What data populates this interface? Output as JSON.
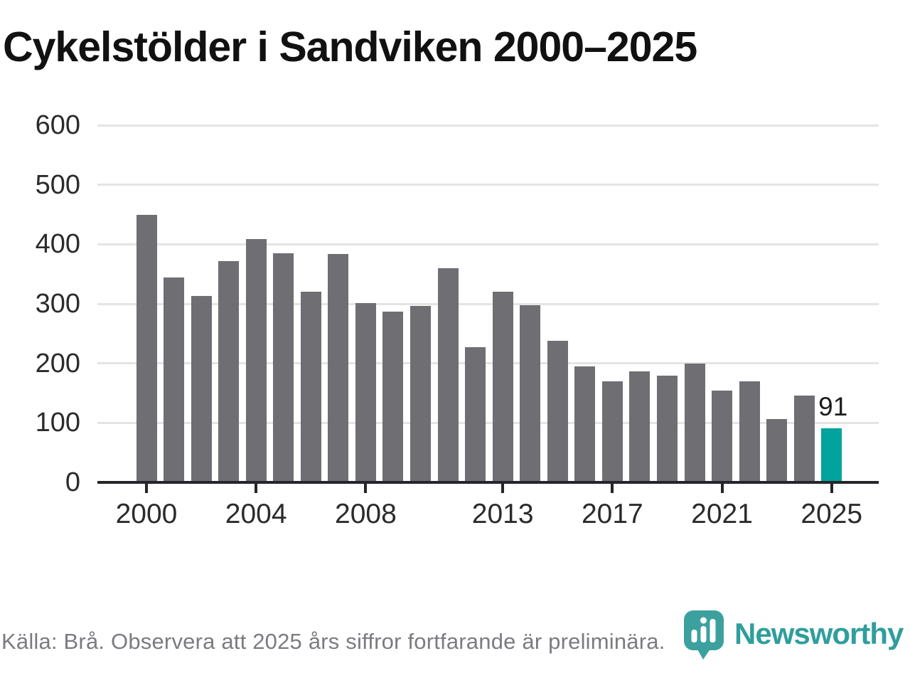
{
  "title": "Cykelstölder i Sandviken 2000–2025",
  "footer": {
    "source_text": "Källa: Brå. Observera att 2025 års siffror fortfarande är preliminära.",
    "brand": "Newsworthy"
  },
  "colors": {
    "title": "#111111",
    "axis": "#26262a",
    "tick_label": "#2b2b2b",
    "gridline": "#e4e4e4",
    "bar": "#6e6e73",
    "highlight": "#00a39d",
    "value_label": "#1d1d1f",
    "source_text": "#7b7b80",
    "logo_badge": "#3ca19e",
    "wordmark": "#2f9e9c"
  },
  "chart_data": {
    "type": "bar",
    "title": "Cykelstölder i Sandviken 2000–2025",
    "x": [
      2000,
      2001,
      2002,
      2003,
      2004,
      2005,
      2006,
      2007,
      2008,
      2009,
      2010,
      2011,
      2012,
      2013,
      2014,
      2015,
      2016,
      2017,
      2018,
      2019,
      2020,
      2021,
      2022,
      2023,
      2024,
      2025
    ],
    "values": [
      450,
      344,
      313,
      372,
      409,
      385,
      320,
      384,
      301,
      287,
      297,
      360,
      227,
      320,
      298,
      238,
      195,
      170,
      187,
      179,
      200,
      154,
      170,
      106,
      146,
      91
    ],
    "highlight": {
      "year": 2025,
      "label": "91"
    },
    "ylim": [
      0,
      600
    ],
    "yticks": [
      0,
      100,
      200,
      300,
      400,
      500,
      600
    ],
    "xticks": [
      2000,
      2004,
      2008,
      2013,
      2017,
      2021,
      2025
    ],
    "grid": true,
    "legend": false,
    "xlabel": "",
    "ylabel": ""
  }
}
